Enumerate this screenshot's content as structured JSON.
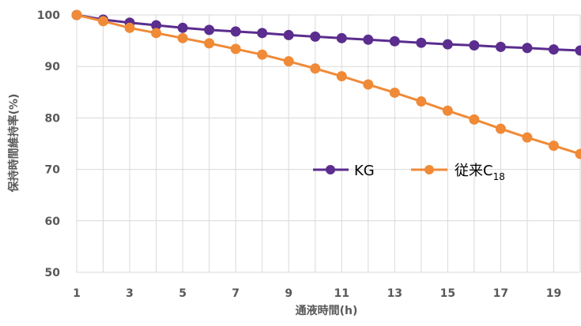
{
  "chart_data": {
    "type": "line",
    "title": "",
    "xlabel": "通液時間(h)",
    "ylabel": "保持時間維持率(%)",
    "x": [
      1,
      2,
      3,
      4,
      5,
      6,
      7,
      8,
      9,
      10,
      11,
      12,
      13,
      14,
      15,
      16,
      17,
      18,
      19,
      20
    ],
    "x_ticks": [
      "1",
      "3",
      "5",
      "7",
      "9",
      "11",
      "13",
      "15",
      "17",
      "19"
    ],
    "y_ticks": [
      "50",
      "60",
      "70",
      "80",
      "90",
      "100"
    ],
    "ylim": [
      50,
      100
    ],
    "grid": true,
    "legend_position": "inside-right",
    "series": [
      {
        "name": "KG",
        "color": "#5b2d8e",
        "values": [
          100.0,
          99.1,
          98.5,
          98.0,
          97.5,
          97.1,
          96.8,
          96.5,
          96.1,
          95.8,
          95.5,
          95.2,
          94.9,
          94.6,
          94.3,
          94.1,
          93.8,
          93.6,
          93.3,
          93.1
        ]
      },
      {
        "name": "従来C",
        "name_subscript": "18",
        "color": "#f08a37",
        "values": [
          100.0,
          98.8,
          97.5,
          96.5,
          95.5,
          94.5,
          93.4,
          92.3,
          91.0,
          89.6,
          88.1,
          86.5,
          84.9,
          83.2,
          81.4,
          79.7,
          77.9,
          76.2,
          74.6,
          73.0
        ]
      }
    ]
  }
}
